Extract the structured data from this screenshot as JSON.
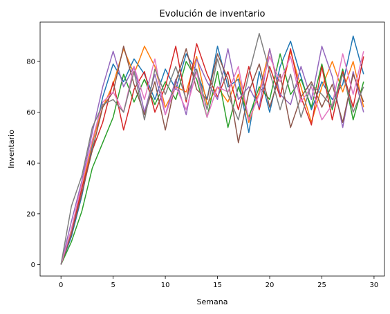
{
  "chart_data": {
    "type": "line",
    "title": "Evolución de inventario",
    "xlabel": "Semana",
    "ylabel": "Inventario",
    "xlim": [
      -2,
      31
    ],
    "ylim": [
      -4.5,
      95.5
    ],
    "xticks": [
      0,
      5,
      10,
      15,
      20,
      25,
      30
    ],
    "yticks": [
      0,
      20,
      40,
      60,
      80
    ],
    "grid": false,
    "x": [
      0,
      1,
      2,
      3,
      4,
      5,
      6,
      7,
      8,
      9,
      10,
      11,
      12,
      13,
      14,
      15,
      16,
      17,
      18,
      19,
      20,
      21,
      22,
      23,
      24,
      25,
      26,
      27,
      28,
      29
    ],
    "series": [
      {
        "color": "#1f77b4",
        "values": [
          0,
          11,
          27,
          47,
          66,
          79,
          72,
          81,
          75,
          65,
          77,
          69,
          83,
          76,
          65,
          86,
          70,
          73,
          52,
          76,
          60,
          78,
          88,
          74,
          61,
          72,
          65,
          71,
          90,
          75
        ]
      },
      {
        "color": "#ff7f0e",
        "values": [
          0,
          13,
          30,
          48,
          62,
          71,
          85,
          75,
          86,
          78,
          62,
          70,
          68,
          82,
          63,
          70,
          64,
          75,
          56,
          68,
          85,
          66,
          84,
          70,
          56,
          70,
          80,
          68,
          80,
          62
        ]
      },
      {
        "color": "#2ca02c",
        "values": [
          0,
          9,
          21,
          38,
          48,
          58,
          75,
          64,
          73,
          63,
          72,
          65,
          80,
          73,
          58,
          76,
          54,
          70,
          58,
          70,
          65,
          83,
          67,
          73,
          62,
          79,
          61,
          77,
          57,
          72
        ]
      },
      {
        "color": "#d62728",
        "values": [
          0,
          12,
          30,
          45,
          56,
          72,
          53,
          69,
          76,
          60,
          70,
          86,
          64,
          87,
          75,
          66,
          76,
          61,
          78,
          61,
          78,
          66,
          85,
          66,
          55,
          78,
          57,
          76,
          62,
          82
        ]
      },
      {
        "color": "#9467bd",
        "values": [
          0,
          17,
          33,
          52,
          70,
          84,
          70,
          78,
          60,
          75,
          59,
          73,
          59,
          81,
          72,
          65,
          85,
          65,
          70,
          62,
          85,
          67,
          63,
          78,
          65,
          86,
          74,
          54,
          76,
          60
        ]
      },
      {
        "color": "#8c564b",
        "values": [
          0,
          12,
          28,
          45,
          62,
          68,
          86,
          71,
          59,
          72,
          53,
          72,
          85,
          69,
          65,
          83,
          73,
          48,
          68,
          79,
          62,
          75,
          54,
          66,
          72,
          62,
          71,
          56,
          75,
          64
        ]
      },
      {
        "color": "#e377c2",
        "values": [
          0,
          14,
          32,
          49,
          64,
          68,
          60,
          78,
          65,
          81,
          59,
          70,
          61,
          76,
          58,
          70,
          68,
          78,
          57,
          67,
          82,
          72,
          82,
          64,
          70,
          57,
          63,
          83,
          67,
          84
        ]
      },
      {
        "color": "#7f7f7f",
        "values": [
          0,
          23,
          35,
          54,
          63,
          65,
          60,
          76,
          57,
          77,
          67,
          78,
          65,
          77,
          61,
          81,
          67,
          57,
          75,
          91,
          76,
          61,
          75,
          58,
          71,
          67,
          62,
          75,
          60,
          70
        ]
      }
    ]
  }
}
